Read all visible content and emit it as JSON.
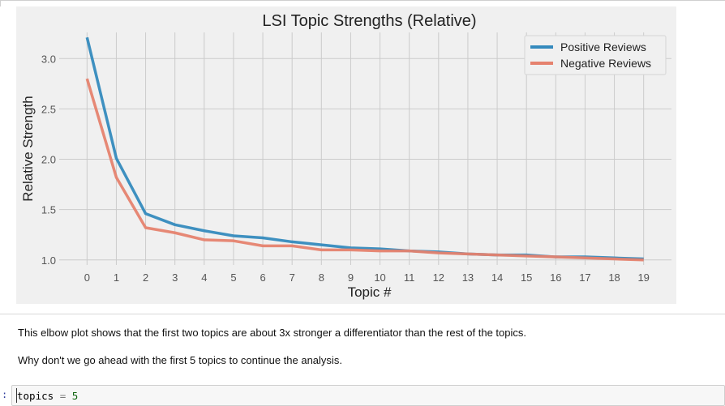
{
  "chart_data": {
    "type": "line",
    "title": "LSI Topic Strengths (Relative)",
    "xlabel": "Topic #",
    "ylabel": "Relative Strength",
    "x": [
      0,
      1,
      2,
      3,
      4,
      5,
      6,
      7,
      8,
      9,
      10,
      11,
      12,
      13,
      14,
      15,
      16,
      17,
      18,
      19
    ],
    "xticks": [
      "0",
      "1",
      "2",
      "3",
      "4",
      "5",
      "6",
      "7",
      "8",
      "9",
      "10",
      "11",
      "12",
      "13",
      "14",
      "15",
      "16",
      "17",
      "18",
      "19"
    ],
    "yticks": [
      "1.0",
      "1.5",
      "2.0",
      "2.5",
      "3.0"
    ],
    "ylim": [
      0.95,
      3.26
    ],
    "xlim": [
      -0.95,
      19.95
    ],
    "grid": true,
    "legend_position": "top-right",
    "series": [
      {
        "name": "Positive Reviews",
        "color": "#348abd",
        "values": [
          3.21,
          2.01,
          1.46,
          1.35,
          1.29,
          1.24,
          1.22,
          1.18,
          1.15,
          1.12,
          1.11,
          1.09,
          1.08,
          1.06,
          1.05,
          1.05,
          1.03,
          1.03,
          1.02,
          1.01
        ]
      },
      {
        "name": "Negative Reviews",
        "color": "#e5826e",
        "values": [
          2.8,
          1.82,
          1.32,
          1.27,
          1.2,
          1.19,
          1.14,
          1.14,
          1.1,
          1.1,
          1.09,
          1.09,
          1.07,
          1.06,
          1.05,
          1.04,
          1.03,
          1.02,
          1.01,
          1.0
        ]
      }
    ]
  },
  "markdown": {
    "paragraph1": "This elbow plot shows that the first two topics are about 3x stronger a differentiator than the rest of the topics.",
    "paragraph2": "Why don't we go ahead with the first 5 topics to continue the analysis."
  },
  "code_cell": {
    "prompt": ":",
    "tokens": {
      "var": "topics",
      "op": "=",
      "num": "5"
    }
  }
}
